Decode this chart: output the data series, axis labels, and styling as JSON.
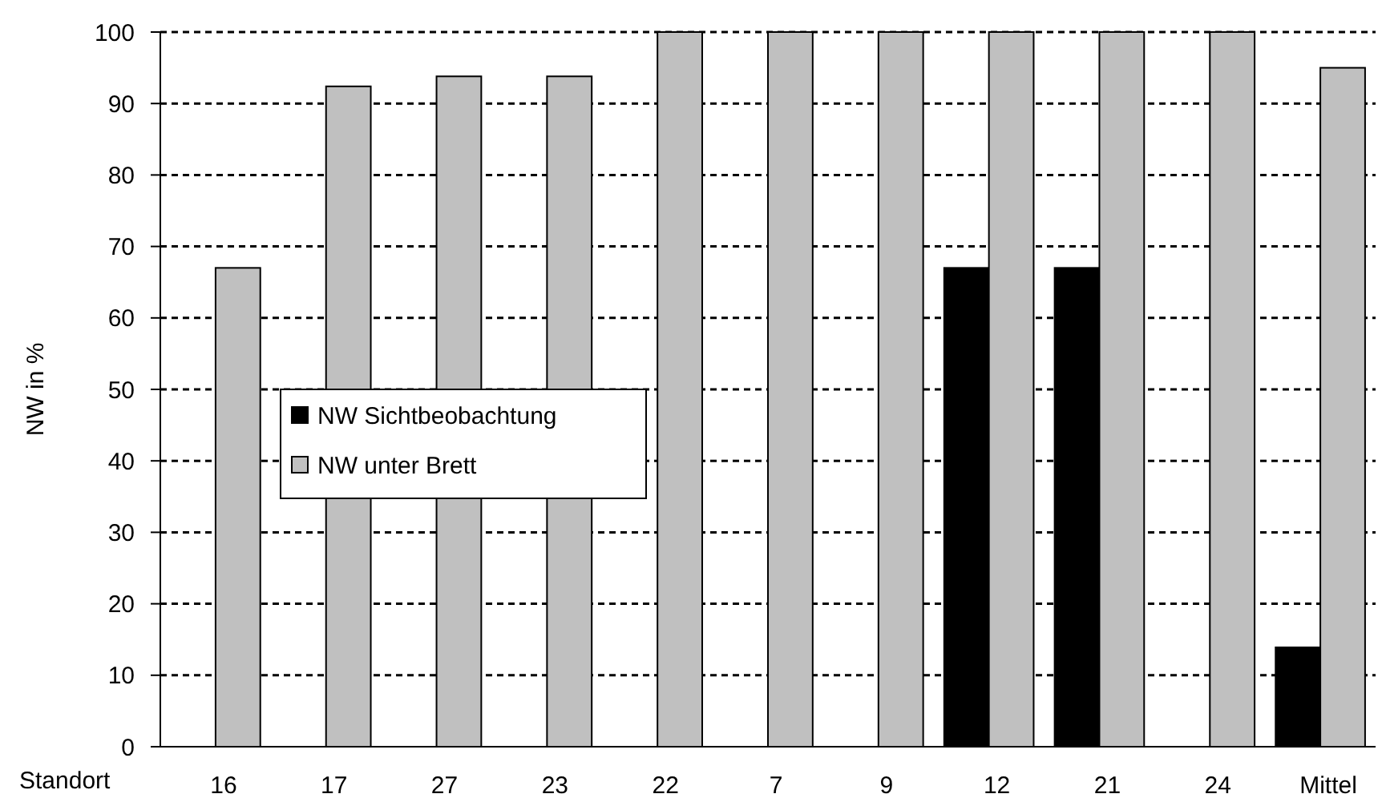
{
  "chart_data": {
    "type": "bar",
    "xlabel": "Standort",
    "ylabel": "NW in %",
    "categories": [
      "16",
      "17",
      "27",
      "23",
      "22",
      "7",
      "9",
      "12",
      "21",
      "24",
      "Mittel"
    ],
    "series": [
      {
        "name": "NW Sichtbeobachtung",
        "color": "#000000",
        "values": [
          null,
          null,
          null,
          null,
          null,
          null,
          null,
          67,
          67,
          null,
          13.9
        ]
      },
      {
        "name": "NW unter Brett",
        "color": "#c0c0c0",
        "values": [
          67,
          92.4,
          93.8,
          93.8,
          100,
          100,
          100,
          100,
          100,
          100,
          95
        ]
      }
    ],
    "ylim": [
      0,
      100
    ],
    "yticks": [
      0,
      10,
      20,
      30,
      40,
      50,
      60,
      70,
      80,
      90,
      100
    ],
    "grid": "y",
    "legend": "left"
  }
}
